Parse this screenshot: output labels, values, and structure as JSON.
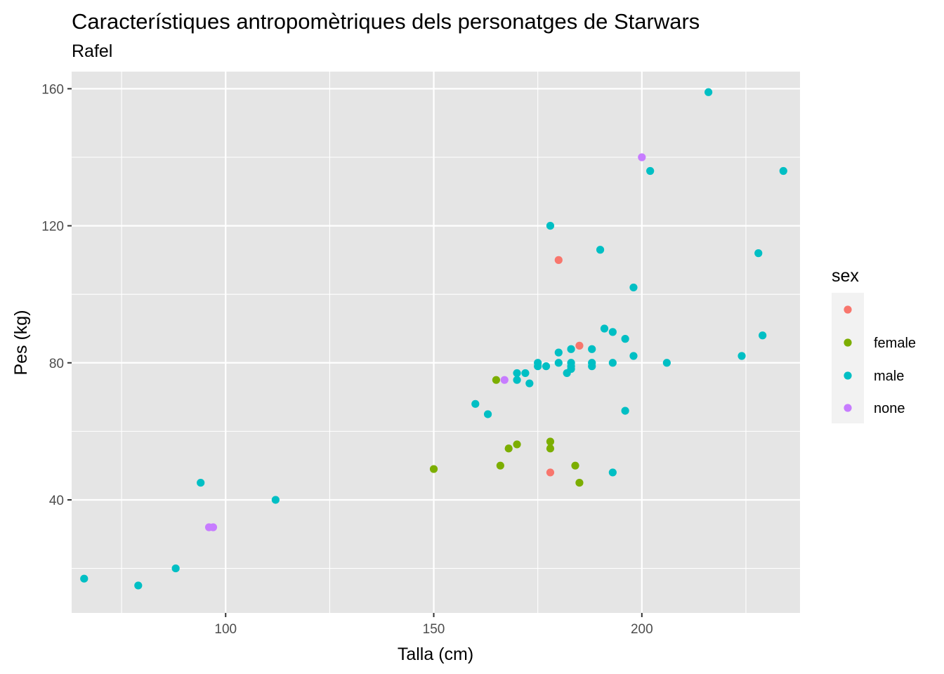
{
  "chart_data": {
    "type": "scatter",
    "title": "Característiques antropomètriques dels personatges de Starwars",
    "subtitle": "Rafel",
    "xlabel": "Talla (cm)",
    "ylabel": "Pes (kg)",
    "xlim": [
      63,
      238
    ],
    "ylim": [
      7,
      165
    ],
    "x_ticks": [
      100,
      150,
      200
    ],
    "y_ticks": [
      40,
      80,
      120,
      160
    ],
    "x_minor": [
      75,
      125,
      175,
      225
    ],
    "y_minor": [
      20,
      60,
      100,
      140
    ],
    "grid": true,
    "legend": {
      "title": "sex",
      "placement": "right",
      "entries": [
        {
          "label": "",
          "color": "#F8766D"
        },
        {
          "label": "female",
          "color": "#7CAE00"
        },
        {
          "label": "male",
          "color": "#00BFC4"
        },
        {
          "label": "none",
          "color": "#C77CFF"
        }
      ]
    },
    "series": [
      {
        "key": "na",
        "color": "#F8766D",
        "points": [
          [
            180,
            110
          ],
          [
            185,
            85
          ],
          [
            178,
            48
          ]
        ]
      },
      {
        "name": "female",
        "color": "#7CAE00",
        "points": [
          [
            150,
            49
          ],
          [
            165,
            75
          ],
          [
            166,
            50
          ],
          [
            168,
            55
          ],
          [
            170,
            56.2
          ],
          [
            178,
            57
          ],
          [
            178,
            55
          ],
          [
            184,
            50
          ],
          [
            185,
            45
          ]
        ]
      },
      {
        "name": "male",
        "color": "#00BFC4",
        "points": [
          [
            66,
            17
          ],
          [
            79,
            15
          ],
          [
            88,
            20
          ],
          [
            94,
            45
          ],
          [
            112,
            40
          ],
          [
            160,
            68
          ],
          [
            163,
            65
          ],
          [
            170,
            77
          ],
          [
            170,
            75
          ],
          [
            172,
            77
          ],
          [
            173,
            74
          ],
          [
            175,
            80
          ],
          [
            175,
            79
          ],
          [
            177,
            79
          ],
          [
            178,
            120
          ],
          [
            180,
            83
          ],
          [
            180,
            80
          ],
          [
            182,
            77
          ],
          [
            183,
            84
          ],
          [
            183,
            80
          ],
          [
            183,
            79
          ],
          [
            183,
            78.2
          ],
          [
            188,
            84
          ],
          [
            188,
            80
          ],
          [
            188,
            79
          ],
          [
            190,
            113
          ],
          [
            191,
            90
          ],
          [
            193,
            89
          ],
          [
            193,
            80
          ],
          [
            193,
            48
          ],
          [
            196,
            87
          ],
          [
            196,
            66
          ],
          [
            198,
            102
          ],
          [
            198,
            82
          ],
          [
            202,
            136
          ],
          [
            206,
            80
          ],
          [
            216,
            159
          ],
          [
            224,
            82
          ],
          [
            228,
            112
          ],
          [
            229,
            88
          ],
          [
            234,
            136
          ]
        ]
      },
      {
        "name": "none",
        "color": "#C77CFF",
        "points": [
          [
            96,
            32
          ],
          [
            97,
            32
          ],
          [
            167,
            75
          ],
          [
            200,
            140
          ]
        ]
      }
    ]
  },
  "colors": {
    "panel_background": "#E5E5E5",
    "grid_line": "#FFFFFF"
  }
}
